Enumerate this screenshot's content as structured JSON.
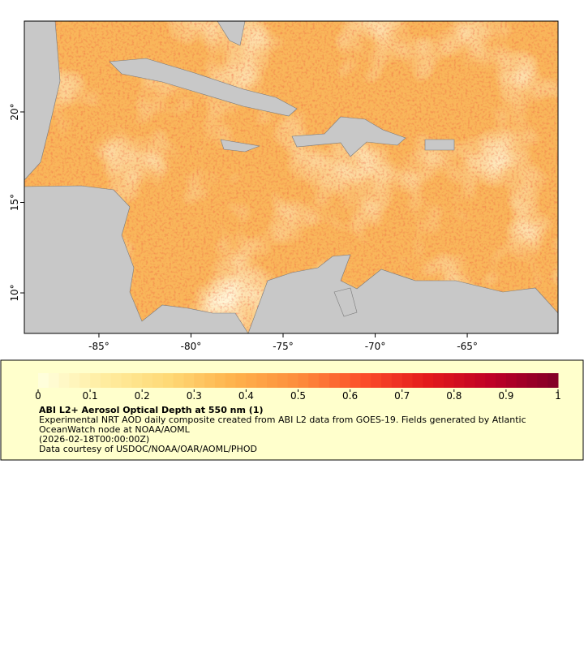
{
  "map": {
    "xlim": [
      -89.05,
      -60.07
    ],
    "ylim": [
      7.76,
      25.02
    ],
    "xticks": [
      {
        "value": -85,
        "label": "-85°"
      },
      {
        "value": -80,
        "label": "-80°"
      },
      {
        "value": -75,
        "label": "-75°"
      },
      {
        "value": -70,
        "label": "-70°"
      },
      {
        "value": -65,
        "label": "-65°"
      }
    ],
    "yticks": [
      {
        "value": 10,
        "label": "10°"
      },
      {
        "value": 15,
        "label": "15°"
      },
      {
        "value": 20,
        "label": "20°"
      }
    ],
    "colorbar": {
      "lim": [
        0,
        1
      ],
      "ticks": [
        0,
        0.1,
        0.2,
        0.3,
        0.4,
        0.5,
        0.6,
        0.7,
        0.8,
        0.9,
        1
      ],
      "colormap": [
        "#ffffe0",
        "#ffeda0",
        "#fed976",
        "#feb24c",
        "#fd8d3c",
        "#fc4e2a",
        "#e31a1c",
        "#bd0026",
        "#800026"
      ]
    }
  },
  "caption": {
    "title": "ABI L2+ Aerosol Optical Depth at 550 nm (1)",
    "description": "Experimental NRT AOD daily composite created from ABI L2 data from GOES-19. Fields generated by Atlantic OceanWatch node at NOAA/AOML",
    "time": "(2026-02-18T00:00:00Z)",
    "credit": "Data courtesy of USDOC/NOAA/OAR/AOML/PHOD"
  }
}
